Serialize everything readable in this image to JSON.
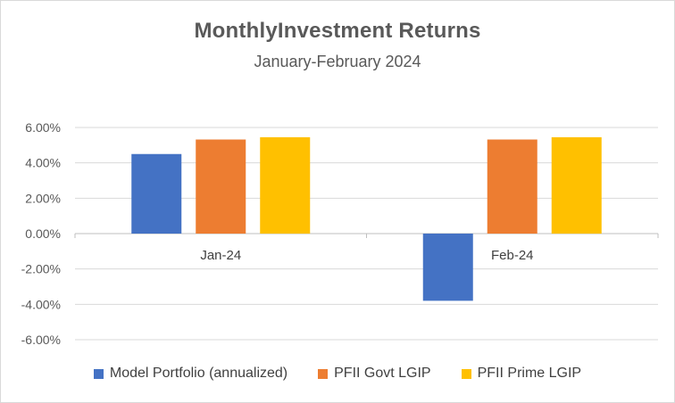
{
  "chart_data": {
    "type": "bar",
    "title": "MonthlyInvestment Returns",
    "subtitle": "January-February 2024",
    "categories": [
      "Jan-24",
      "Feb-24"
    ],
    "series": [
      {
        "name": "Model Portfolio (annualized)",
        "color": "#4472c4",
        "values": [
          4.5,
          -3.8
        ]
      },
      {
        "name": "PFII Govt LGIP",
        "color": "#ed7d31",
        "values": [
          5.32,
          5.32
        ]
      },
      {
        "name": "PFII Prime LGIP",
        "color": "#ffc000",
        "values": [
          5.45,
          5.45
        ]
      }
    ],
    "unit": "%",
    "ylim": [
      -6,
      6
    ],
    "y_ticks": [
      "6.00%",
      "4.00%",
      "2.00%",
      "0.00%",
      "-2.00%",
      "-4.00%",
      "-6.00%"
    ],
    "y_tick_values": [
      6,
      4,
      2,
      0,
      -2,
      -4,
      -6
    ],
    "grid": true,
    "legend_position": "bottom"
  }
}
